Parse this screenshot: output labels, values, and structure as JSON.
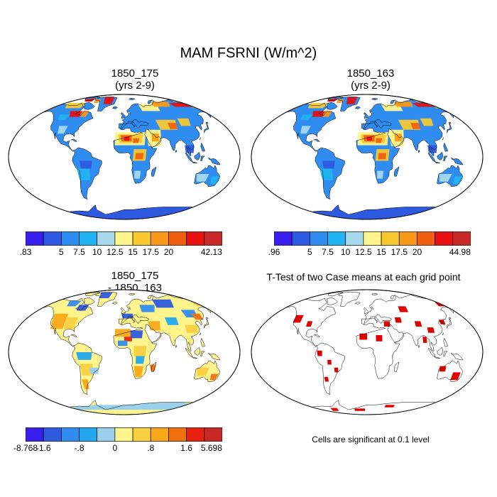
{
  "title": "MAM FSRNI (W/m^2)",
  "panels": [
    {
      "id": "p1",
      "title_line1": "1850_175",
      "title_line2": "(yrs 2-9)",
      "kind": "absolute"
    },
    {
      "id": "p2",
      "title_line1": "1850_163",
      "title_line2": "(yrs 2-9)",
      "kind": "absolute"
    },
    {
      "id": "p3",
      "title_line1": "1850_175",
      "title_line2": "- 1850_163",
      "kind": "difference"
    },
    {
      "id": "p4",
      "title_line1": "T-Test of two Case means at each grid point",
      "kind": "significance"
    }
  ],
  "colorbars": {
    "abs1": {
      "colors": [
        "#3a1ef0",
        "#2d5ae0",
        "#2f8cf0",
        "#21b4f0",
        "#a8d8ec",
        "#fff58c",
        "#f8c830",
        "#f89a18",
        "#f06010",
        "#e81010",
        "#c82828"
      ],
      "labels": [
        ".83",
        "",
        "5",
        "7.5",
        "10",
        "12.5",
        "15",
        "17.5",
        "20",
        "",
        "42.13"
      ]
    },
    "abs2": {
      "colors": [
        "#3a1ef0",
        "#2d5ae0",
        "#2f8cf0",
        "#21b4f0",
        "#a8d8ec",
        "#fff58c",
        "#f8c830",
        "#f89a18",
        "#f06010",
        "#e81010",
        "#c82828"
      ],
      "labels": [
        ".96",
        "",
        "5",
        "7.5",
        "10",
        "12.5",
        "15",
        "17.5",
        "20",
        "",
        "44.98"
      ]
    },
    "diff": {
      "colors": [
        "#3a1ef0",
        "#2d5ae0",
        "#2f8cf0",
        "#21a8f0",
        "#9ad0ee",
        "#fff58c",
        "#f8d040",
        "#f8a818",
        "#f07010",
        "#e82010",
        "#c82828"
      ],
      "labels": [
        "-8.768",
        "-1.6",
        "",
        "-.8",
        "",
        "0",
        "",
        ".8",
        "",
        "1.6",
        "5.698"
      ]
    }
  },
  "significance_color": "#e00000",
  "significance_note": "Cells are significant at 0.1 level"
}
